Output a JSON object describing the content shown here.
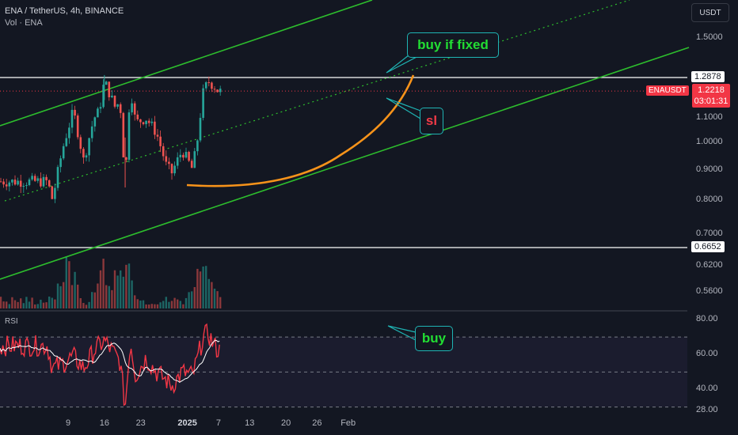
{
  "header": {
    "title": "ENA / TetherUS, 4h, BINANCE",
    "volume_label": "Vol · ENA",
    "rsi_label": "RSI"
  },
  "currency_button": "USDT",
  "price_axis": [
    {
      "v": 1.5,
      "label": "1.5000"
    },
    {
      "v": 1.1,
      "label": "1.1000"
    },
    {
      "v": 1.0,
      "label": "1.0000"
    },
    {
      "v": 0.9,
      "label": "0.9000"
    },
    {
      "v": 0.8,
      "label": "0.8000"
    },
    {
      "v": 0.7,
      "label": "0.7000"
    },
    {
      "v": 0.62,
      "label": "0.6200"
    },
    {
      "v": 0.56,
      "label": "0.5600"
    }
  ],
  "rsi_axis": [
    {
      "v": 80,
      "label": "80.00"
    },
    {
      "v": 60,
      "label": "60.00"
    },
    {
      "v": 40,
      "label": "40.00"
    },
    {
      "v": 28,
      "label": "28.00"
    }
  ],
  "levels": {
    "resistance": {
      "value": 1.2878,
      "label": "1.2878"
    },
    "support": {
      "value": 0.6652,
      "label": "0.6652"
    }
  },
  "last_price": {
    "symbol": "ENAUSDT",
    "value": "1.2218",
    "countdown": "03:01:31"
  },
  "time_axis": [
    {
      "label": "9",
      "bold": false
    },
    {
      "label": "16",
      "bold": false
    },
    {
      "label": "23",
      "bold": false
    },
    {
      "label": "2025",
      "bold": true
    },
    {
      "label": "7",
      "bold": false
    },
    {
      "label": "13",
      "bold": false
    },
    {
      "label": "20",
      "bold": false
    },
    {
      "label": "26",
      "bold": false
    },
    {
      "label": "Feb",
      "bold": false
    }
  ],
  "annotations": {
    "buy_if_fixed": "buy if fixed",
    "sl": "sl",
    "buy": "buy"
  },
  "colors": {
    "background": "#131722",
    "up": "#26a69a",
    "down": "#ef5350",
    "channel": "#2dbd2d",
    "arc": "#f7931a",
    "rsi": "#f23645",
    "rsi_ma": "#ffffff",
    "callout_border": "#1fb4b4"
  },
  "chart_data": {
    "type": "candlestick",
    "title": "ENA / TetherUS, 4h, BINANCE",
    "x_range": [
      "2024-12-05",
      "2025-02-02"
    ],
    "ylim": [
      0.53,
      1.6
    ],
    "y_scale": "log",
    "rsi_ylim": [
      28,
      80
    ],
    "rsi_bands": [
      70,
      50,
      30
    ],
    "price_path": [
      [
        "2024-12-05",
        0.86
      ],
      [
        "2024-12-06",
        0.8
      ],
      [
        "2024-12-08",
        0.98
      ],
      [
        "2024-12-10",
        1.13
      ],
      [
        "2024-12-12",
        0.93
      ],
      [
        "2024-12-14",
        1.1
      ],
      [
        "2024-12-15",
        1.13
      ],
      [
        "2024-12-16",
        1.27
      ],
      [
        "2024-12-18",
        1.15
      ],
      [
        "2024-12-19",
        1.17
      ],
      [
        "2024-12-20",
        0.85
      ],
      [
        "2024-12-21",
        1.24
      ],
      [
        "2024-12-22",
        1.08
      ],
      [
        "2024-12-24",
        1.1
      ],
      [
        "2024-12-26",
        1.04
      ],
      [
        "2024-12-28",
        0.91
      ],
      [
        "2024-12-29",
        0.89
      ],
      [
        "2024-12-31",
        0.97
      ],
      [
        "2025-01-02",
        0.9
      ],
      [
        "2025-01-03",
        1.02
      ],
      [
        "2025-01-04",
        1.21
      ],
      [
        "2025-01-05",
        1.27
      ],
      [
        "2025-01-06",
        1.25
      ],
      [
        "2025-01-07",
        1.22
      ]
    ],
    "rsi_path": [
      [
        "2024-12-05",
        65
      ],
      [
        "2024-12-06",
        52
      ],
      [
        "2024-12-08",
        55
      ],
      [
        "2024-12-10",
        59
      ],
      [
        "2024-12-12",
        52
      ],
      [
        "2024-12-14",
        62
      ],
      [
        "2024-12-16",
        68
      ],
      [
        "2024-12-18",
        60
      ],
      [
        "2024-12-19",
        56
      ],
      [
        "2024-12-20",
        30
      ],
      [
        "2024-12-21",
        68
      ],
      [
        "2024-12-22",
        48
      ],
      [
        "2024-12-24",
        58
      ],
      [
        "2024-12-26",
        50
      ],
      [
        "2024-12-28",
        45
      ],
      [
        "2024-12-29",
        42
      ],
      [
        "2024-12-31",
        50
      ],
      [
        "2025-01-02",
        48
      ],
      [
        "2025-01-03",
        58
      ],
      [
        "2025-01-04",
        70
      ],
      [
        "2025-01-05",
        72
      ],
      [
        "2025-01-06",
        66
      ],
      [
        "2025-01-07",
        62
      ]
    ],
    "volume_peaks": [
      [
        "2024-12-09",
        "high"
      ],
      [
        "2024-12-16",
        "high"
      ],
      [
        "2024-12-20",
        "high"
      ],
      [
        "2025-01-03",
        "medium"
      ],
      [
        "2025-01-05",
        "medium"
      ]
    ]
  }
}
